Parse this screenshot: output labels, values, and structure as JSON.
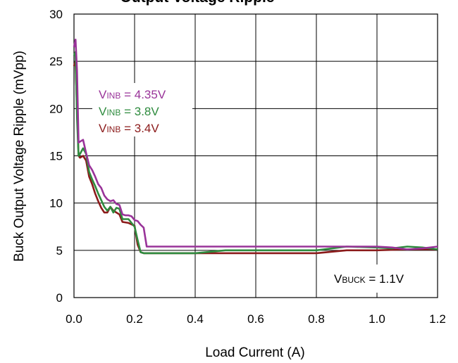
{
  "chart_data": {
    "type": "line",
    "title": "Output Voltage Ripple",
    "xlabel": "Load Current (A)",
    "ylabel": "Buck Output Voltage Ripple (mVpp)",
    "xlim": [
      0,
      1.2
    ],
    "ylim": [
      0,
      30
    ],
    "x_ticks": [
      "0.0",
      "0.2",
      "0.4",
      "0.6",
      "0.8",
      "1.0",
      "1.2"
    ],
    "y_ticks": [
      "0",
      "5",
      "10",
      "15",
      "20",
      "25",
      "30"
    ],
    "grid": true,
    "legend_placement": "upper-left",
    "series": [
      {
        "name": "VINB = 4.35V",
        "label_main": "V",
        "label_sub": "INB",
        "label_rest": " = 4.35V",
        "color": "#993399",
        "x": [
          0.0,
          0.005,
          0.01,
          0.015,
          0.02,
          0.03,
          0.04,
          0.05,
          0.06,
          0.07,
          0.08,
          0.09,
          0.1,
          0.11,
          0.12,
          0.13,
          0.14,
          0.15,
          0.16,
          0.17,
          0.18,
          0.19,
          0.2,
          0.21,
          0.22,
          0.23,
          0.24,
          0.3,
          0.4,
          0.5,
          0.6,
          0.7,
          0.8,
          0.9,
          1.0,
          1.05,
          1.1,
          1.15,
          1.2
        ],
        "y": [
          26.5,
          27.3,
          24.0,
          16.4,
          16.5,
          16.7,
          15.3,
          14.0,
          13.5,
          12.8,
          12.0,
          11.6,
          10.8,
          10.4,
          10.2,
          10.3,
          9.9,
          9.8,
          8.8,
          8.7,
          8.7,
          8.6,
          8.2,
          8.1,
          7.7,
          7.4,
          5.4,
          5.4,
          5.4,
          5.4,
          5.4,
          5.4,
          5.4,
          5.4,
          5.4,
          5.3,
          5.1,
          5.2,
          5.4
        ]
      },
      {
        "name": "VINB = 3.8V",
        "label_main": "V",
        "label_sub": "INB",
        "label_rest": " = 3.8V",
        "color": "#2e8b3e",
        "x": [
          0.0,
          0.005,
          0.01,
          0.015,
          0.02,
          0.03,
          0.04,
          0.05,
          0.06,
          0.07,
          0.08,
          0.09,
          0.1,
          0.11,
          0.12,
          0.13,
          0.14,
          0.15,
          0.16,
          0.18,
          0.2,
          0.21,
          0.22,
          0.23,
          0.3,
          0.4,
          0.5,
          0.6,
          0.7,
          0.8,
          0.9,
          1.0,
          1.05,
          1.1,
          1.15,
          1.2
        ],
        "y": [
          25.6,
          26.0,
          19.0,
          15.0,
          15.2,
          15.8,
          15.2,
          13.3,
          12.5,
          11.8,
          11.0,
          10.3,
          9.6,
          9.2,
          9.6,
          9.0,
          9.5,
          9.4,
          8.3,
          8.3,
          7.5,
          6.1,
          4.8,
          4.7,
          4.7,
          4.7,
          5.0,
          5.0,
          5.0,
          5.0,
          5.4,
          5.3,
          5.2,
          5.4,
          5.3,
          5.1
        ]
      },
      {
        "name": "VINB = 3.4V",
        "label_main": "V",
        "label_sub": "INB",
        "label_rest": " = 3.4V",
        "color": "#8b1a1a",
        "x": [
          0.0,
          0.005,
          0.01,
          0.015,
          0.02,
          0.03,
          0.04,
          0.05,
          0.06,
          0.07,
          0.08,
          0.09,
          0.1,
          0.11,
          0.12,
          0.13,
          0.14,
          0.15,
          0.16,
          0.18,
          0.2,
          0.21,
          0.22,
          0.23,
          0.3,
          0.4,
          0.5,
          0.6,
          0.7,
          0.8,
          0.9,
          1.0,
          1.1,
          1.2
        ],
        "y": [
          24.5,
          25.0,
          20.0,
          15.0,
          14.8,
          15.0,
          14.5,
          12.8,
          12.0,
          11.0,
          10.2,
          9.5,
          9.0,
          9.0,
          9.6,
          9.2,
          9.0,
          8.8,
          8.0,
          7.9,
          7.6,
          5.6,
          4.8,
          4.7,
          4.7,
          4.7,
          4.7,
          4.7,
          4.7,
          4.7,
          5.0,
          5.0,
          5.1,
          5.1
        ]
      }
    ],
    "annotation": {
      "main": "V",
      "sub": "BUCK",
      "rest": " = 1.1V"
    }
  }
}
